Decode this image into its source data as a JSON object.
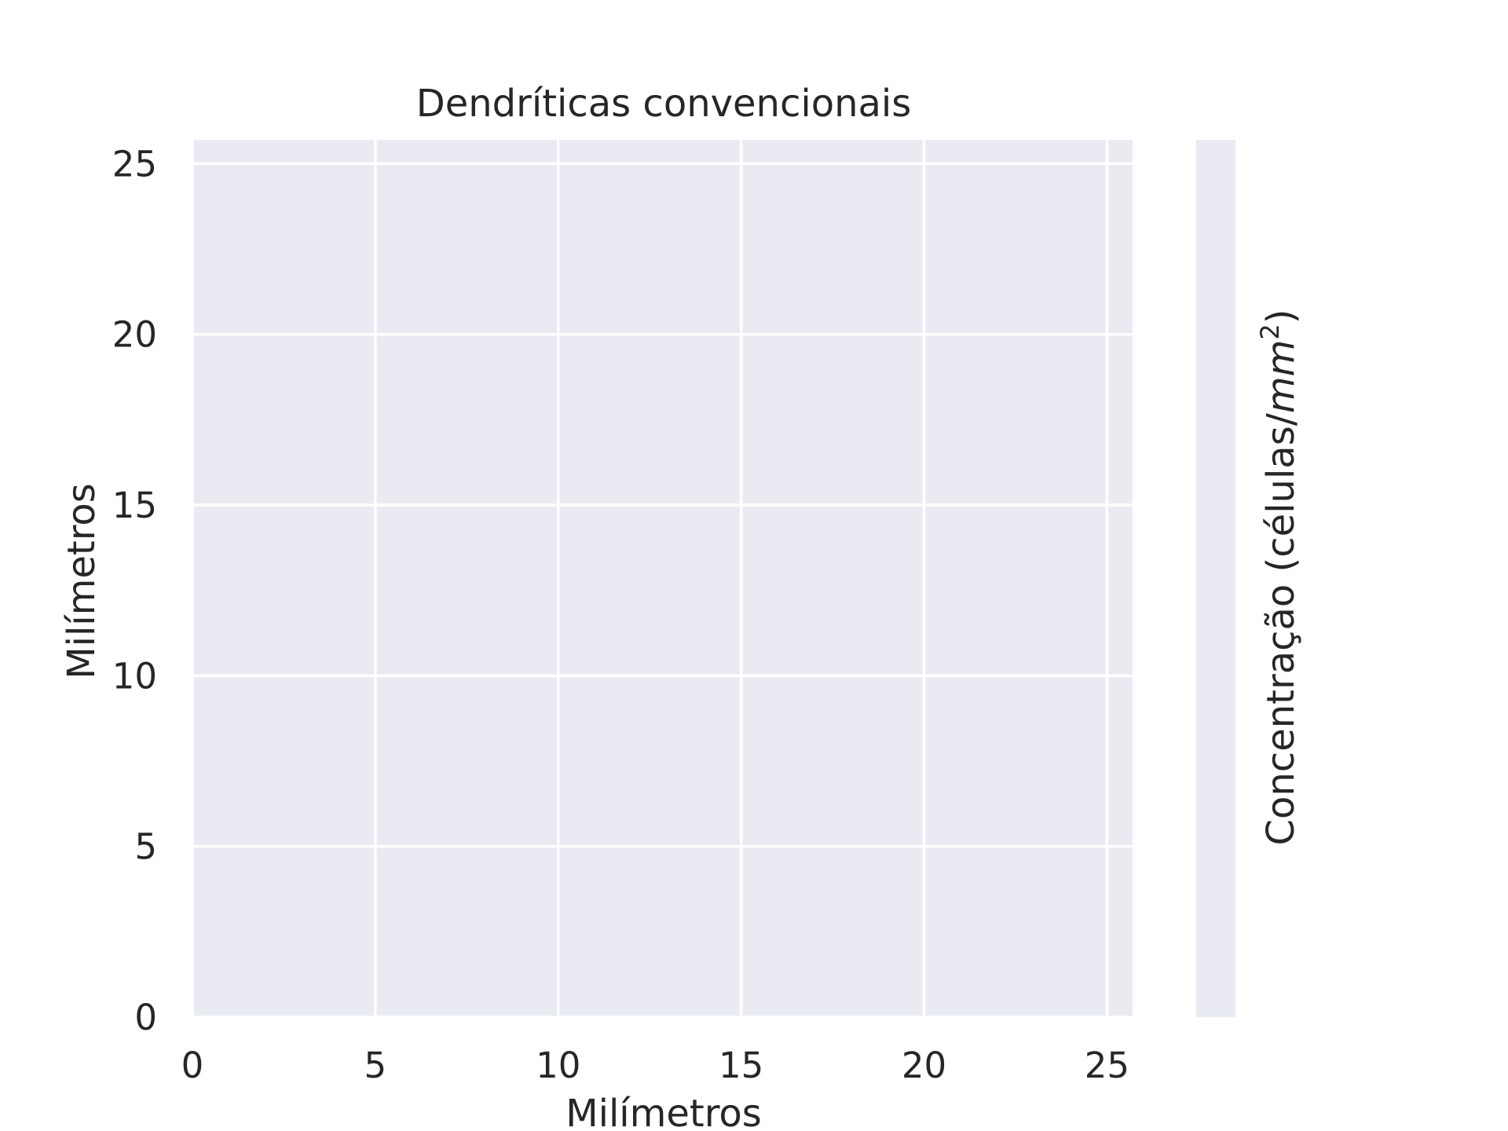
{
  "chart_data": {
    "type": "heatmap",
    "title": "Dendríticas convencionais",
    "xlabel": "Milímetros",
    "ylabel": "Milímetros",
    "xlim": [
      0,
      25.7
    ],
    "ylim": [
      0,
      25.7
    ],
    "xticks": [
      "0",
      "5",
      "10",
      "15",
      "20",
      "25"
    ],
    "yticks": [
      "0",
      "5",
      "10",
      "15",
      "20",
      "25"
    ],
    "grid": true,
    "values": [],
    "colorbar": {
      "label_main": "Concentração (células/",
      "label_unit": "mm",
      "label_exponent": "2",
      "label_close": ")"
    },
    "colors": {
      "axes_background": "#eaeaf2",
      "grid": "#ffffff",
      "text": "#262626"
    }
  }
}
